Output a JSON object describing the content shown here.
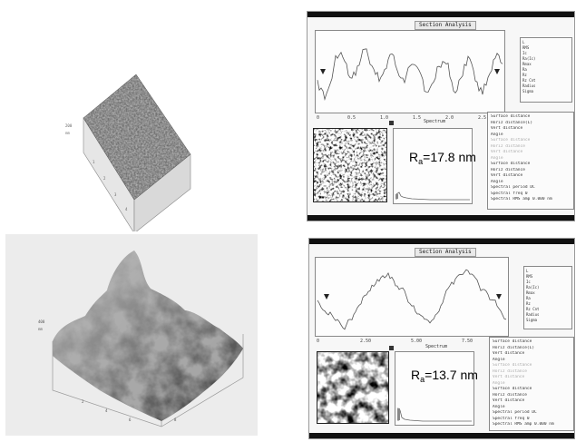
{
  "panels": [
    {
      "id": "top",
      "analysis_title": "Section Analysis",
      "spectrum_title": "Spectrum",
      "ra_symbol": "R",
      "ra_sub": "a",
      "ra_value": "=17.8 nm",
      "x_ticks": [
        "0",
        "0.5",
        "1.0",
        "1.5",
        "2.0",
        "2.5"
      ],
      "stats": [
        "L",
        "RMS",
        "Ic",
        "Ra(Ic)",
        "Rmax",
        "Ra",
        "Rz",
        "Rz Cnt",
        "Radius",
        "Sigma"
      ],
      "info_rows": [
        {
          "text": "Surface distance",
          "dim": false
        },
        {
          "text": "Horiz distance(L)",
          "dim": false
        },
        {
          "text": "Vert distance",
          "dim": false
        },
        {
          "text": "Angle",
          "dim": false
        },
        {
          "text": "Surface distance",
          "dim": true
        },
        {
          "text": "Horiz distance",
          "dim": true
        },
        {
          "text": "Vert distance",
          "dim": true
        },
        {
          "text": "Angle",
          "dim": true
        },
        {
          "text": "Surface distance",
          "dim": false
        },
        {
          "text": "Horiz distance",
          "dim": false
        },
        {
          "text": "Vert distance",
          "dim": false
        },
        {
          "text": "Angle",
          "dim": false
        },
        {
          "text": "Spectral period   DC",
          "dim": false
        },
        {
          "text": "Spectral freq     0",
          "dim": false
        },
        {
          "text": "Spectral RMS amp  0.000 nm",
          "dim": false
        }
      ]
    },
    {
      "id": "bottom",
      "analysis_title": "Section Analysis",
      "spectrum_title": "Spectrum",
      "ra_symbol": "R",
      "ra_sub": "a",
      "ra_value": "=13.7 nm",
      "x_ticks": [
        "0",
        "2.50",
        "5.00",
        "7.50"
      ],
      "stats": [
        "L",
        "RMS",
        "Ic",
        "Ra(Ic)",
        "Rmax",
        "Ra",
        "Rz",
        "Rz Cnt",
        "Radius",
        "Sigma"
      ],
      "info_rows": [
        {
          "text": "Surface distance",
          "dim": false
        },
        {
          "text": "Horiz distance(L)",
          "dim": false
        },
        {
          "text": "Vert distance",
          "dim": false
        },
        {
          "text": "Angle",
          "dim": false
        },
        {
          "text": "Surface distance",
          "dim": true
        },
        {
          "text": "Horiz distance",
          "dim": true
        },
        {
          "text": "Vert distance",
          "dim": true
        },
        {
          "text": "Angle",
          "dim": true
        },
        {
          "text": "Surface distance",
          "dim": false
        },
        {
          "text": "Horiz distance",
          "dim": false
        },
        {
          "text": "Vert distance",
          "dim": false
        },
        {
          "text": "Angle",
          "dim": false
        },
        {
          "text": "Spectral period   DC",
          "dim": false
        },
        {
          "text": "Spectral freq     0",
          "dim": false
        },
        {
          "text": "Spectral RMS amp  0.000 nm",
          "dim": false
        }
      ]
    }
  ],
  "colors": {
    "surface_light": "#cfcfcf",
    "surface_dark": "#2b2b2b",
    "plot_line": "#555555",
    "bar": "#111111"
  }
}
